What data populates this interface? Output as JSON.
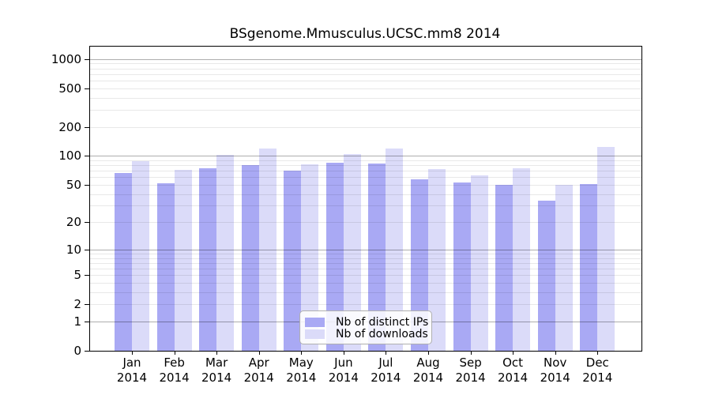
{
  "chart_data": {
    "type": "bar",
    "title": "BSgenome.Mmusculus.UCSC.mm8 2014",
    "categories": [
      "Jan",
      "Feb",
      "Mar",
      "Apr",
      "May",
      "Jun",
      "Jul",
      "Aug",
      "Sep",
      "Oct",
      "Nov",
      "Dec"
    ],
    "category_year": "2014",
    "series": [
      {
        "name": "Nb of distinct IPs",
        "color": "#a9a9f4",
        "values": [
          66,
          52,
          75,
          80,
          70,
          85,
          83,
          57,
          53,
          50,
          34,
          51
        ]
      },
      {
        "name": "Nb of downloads",
        "color": "#dbdbf9",
        "values": [
          88,
          71,
          102,
          119,
          82,
          104,
          119,
          73,
          63,
          74,
          50,
          124
        ]
      }
    ],
    "ylabel": "",
    "xlabel": "",
    "yticks": [
      1000,
      500,
      200,
      100,
      50,
      20,
      10,
      5,
      2,
      1,
      0
    ],
    "grid_major": [
      1,
      10,
      100,
      1000
    ],
    "grid_minor": [
      2,
      3,
      4,
      5,
      6,
      7,
      8,
      9,
      20,
      30,
      40,
      50,
      60,
      70,
      80,
      90,
      200,
      300,
      400,
      500,
      600,
      700,
      800,
      900
    ],
    "scale": "log10(1+v)",
    "ymax": 1342,
    "grid": "on",
    "legend_position": "inside-bottom-center"
  },
  "colors": {
    "major_grid": "rgba(0,0,0,0.32)",
    "minor_grid": "rgba(0,0,0,0.09)",
    "axis": "#000000",
    "legend_border": "#b0b0b0",
    "background": "#ffffff"
  }
}
